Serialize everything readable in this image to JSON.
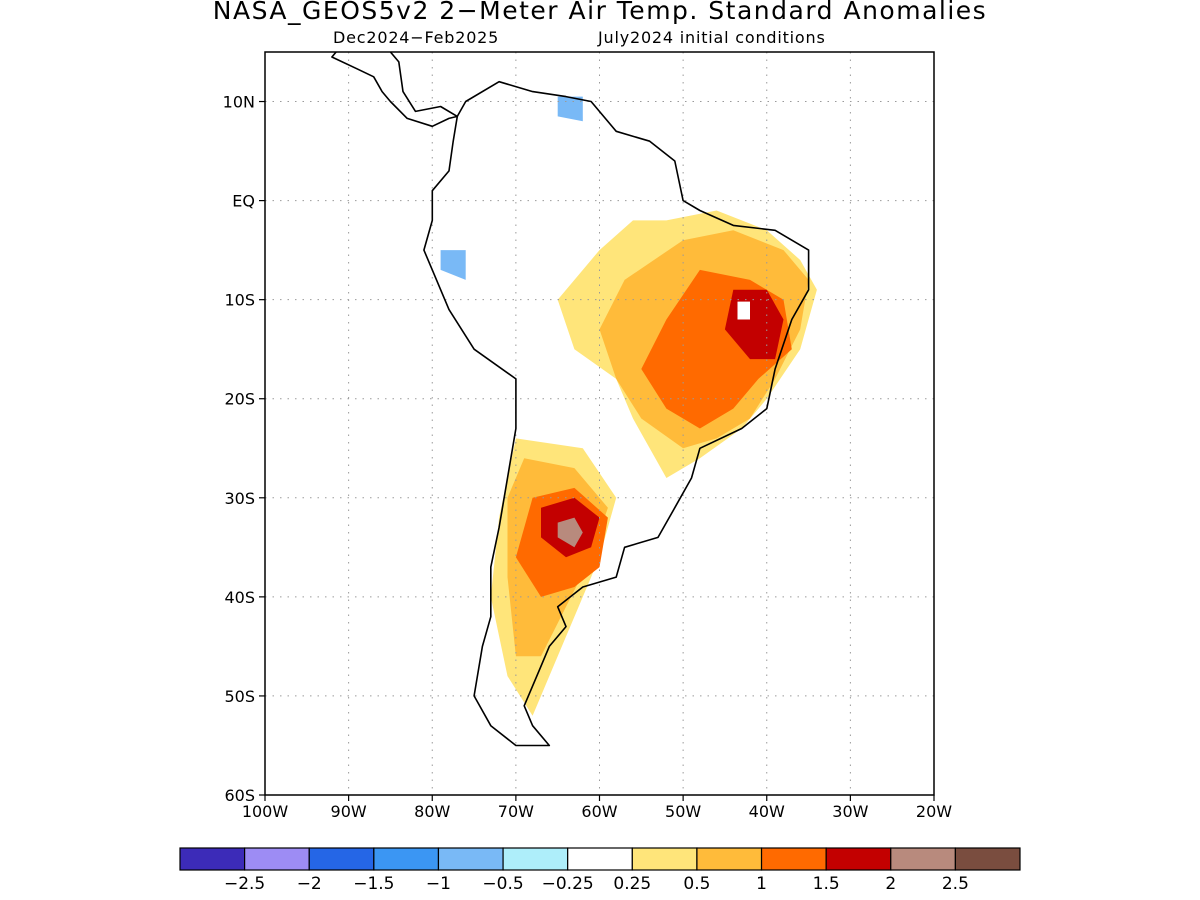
{
  "title": "NASA_GEOS5v2 2−Meter Air Temp. Standard Anomalies",
  "subtitle_left": "Dec2024−Feb2025",
  "subtitle_right": "July2024 initial conditions",
  "map": {
    "lon_range": [
      -100,
      -20
    ],
    "lat_range": [
      -60,
      15
    ],
    "lon_ticks": [
      {
        "value": -100,
        "label": "100W"
      },
      {
        "value": -90,
        "label": "90W"
      },
      {
        "value": -80,
        "label": "80W"
      },
      {
        "value": -70,
        "label": "70W"
      },
      {
        "value": -60,
        "label": "60W"
      },
      {
        "value": -50,
        "label": "50W"
      },
      {
        "value": -40,
        "label": "40W"
      },
      {
        "value": -30,
        "label": "30W"
      },
      {
        "value": -20,
        "label": "20W"
      }
    ],
    "lat_ticks": [
      {
        "value": 10,
        "label": "10N"
      },
      {
        "value": 0,
        "label": "EQ"
      },
      {
        "value": -10,
        "label": "10S"
      },
      {
        "value": -20,
        "label": "20S"
      },
      {
        "value": -30,
        "label": "30S"
      },
      {
        "value": -40,
        "label": "40S"
      },
      {
        "value": -50,
        "label": "50S"
      },
      {
        "value": -60,
        "label": "60S"
      }
    ],
    "grid": true,
    "coastline_color": "#000000"
  },
  "colorbar": {
    "bins": [
      {
        "color": "#3c2bb8"
      },
      {
        "color": "#9d8cf4"
      },
      {
        "color": "#2566e6"
      },
      {
        "color": "#3b96f3"
      },
      {
        "color": "#79b9f6"
      },
      {
        "color": "#aeeefa"
      },
      {
        "color": "#ffffff"
      },
      {
        "color": "#ffe57a"
      },
      {
        "color": "#ffbb3a"
      },
      {
        "color": "#ff6a00"
      },
      {
        "color": "#c30000"
      },
      {
        "color": "#b88a7d"
      },
      {
        "color": "#7a4d3f"
      }
    ],
    "labels": [
      "−2.5",
      "−2",
      "−1.5",
      "−1",
      "−0.5",
      "−0.25",
      "0.25",
      "0.5",
      "1",
      "1.5",
      "2",
      "2.5"
    ]
  },
  "anomaly_regions": [
    {
      "level": "0.5",
      "color": "#ffe57a",
      "lonlat": [
        [
          -52,
          -2
        ],
        [
          -46,
          -1
        ],
        [
          -40,
          -3
        ],
        [
          -36,
          -6
        ],
        [
          -34,
          -9
        ],
        [
          -36,
          -15
        ],
        [
          -40,
          -20
        ],
        [
          -43,
          -23
        ],
        [
          -48,
          -26
        ],
        [
          -52,
          -28
        ],
        [
          -56,
          -22
        ],
        [
          -58,
          -18
        ],
        [
          -63,
          -15
        ],
        [
          -65,
          -10
        ],
        [
          -60,
          -5
        ],
        [
          -56,
          -2
        ]
      ]
    },
    {
      "level": "0.5",
      "color": "#ffe57a",
      "lonlat": [
        [
          -70,
          -24
        ],
        [
          -62,
          -25
        ],
        [
          -58,
          -30
        ],
        [
          -60,
          -36
        ],
        [
          -63,
          -42
        ],
        [
          -66,
          -48
        ],
        [
          -68,
          -52
        ],
        [
          -71,
          -48
        ],
        [
          -73,
          -40
        ],
        [
          -72,
          -32
        ]
      ]
    },
    {
      "level": "1",
      "color": "#ffbb3a",
      "lonlat": [
        [
          -50,
          -4
        ],
        [
          -44,
          -3
        ],
        [
          -38,
          -5
        ],
        [
          -35,
          -8
        ],
        [
          -36,
          -13
        ],
        [
          -39,
          -18
        ],
        [
          -42,
          -22
        ],
        [
          -46,
          -24
        ],
        [
          -50,
          -25
        ],
        [
          -55,
          -22
        ],
        [
          -58,
          -18
        ],
        [
          -60,
          -13
        ],
        [
          -57,
          -8
        ]
      ]
    },
    {
      "level": "1",
      "color": "#ffbb3a",
      "lonlat": [
        [
          -69,
          -26
        ],
        [
          -63,
          -27
        ],
        [
          -59,
          -31
        ],
        [
          -61,
          -36
        ],
        [
          -64,
          -41
        ],
        [
          -67,
          -46
        ],
        [
          -70,
          -46
        ],
        [
          -71,
          -38
        ],
        [
          -71,
          -30
        ]
      ]
    },
    {
      "level": "1.5",
      "color": "#ff6a00",
      "lonlat": [
        [
          -48,
          -7
        ],
        [
          -42,
          -8
        ],
        [
          -38,
          -10
        ],
        [
          -37,
          -15
        ],
        [
          -41,
          -18
        ],
        [
          -44,
          -21
        ],
        [
          -48,
          -23
        ],
        [
          -52,
          -21
        ],
        [
          -55,
          -17
        ],
        [
          -52,
          -12
        ]
      ]
    },
    {
      "level": "1.5",
      "color": "#ff6a00",
      "lonlat": [
        [
          -68,
          -30
        ],
        [
          -63,
          -29
        ],
        [
          -59,
          -32
        ],
        [
          -60,
          -37
        ],
        [
          -63,
          -39
        ],
        [
          -67,
          -40
        ],
        [
          -70,
          -36
        ]
      ]
    },
    {
      "level": "2",
      "color": "#c30000",
      "lonlat": [
        [
          -44,
          -9
        ],
        [
          -40,
          -9
        ],
        [
          -38,
          -12
        ],
        [
          -39,
          -16
        ],
        [
          -42,
          -16
        ],
        [
          -45,
          -13
        ]
      ]
    },
    {
      "level": "2",
      "color": "#c30000",
      "lonlat": [
        [
          -67,
          -31
        ],
        [
          -63,
          -30
        ],
        [
          -60,
          -32
        ],
        [
          -61,
          -35
        ],
        [
          -64,
          -36
        ],
        [
          -67,
          -34
        ]
      ]
    },
    {
      "level": "2.5",
      "color": "#b88a7d",
      "lonlat": [
        [
          -65,
          -32.5
        ],
        [
          -63,
          -32
        ],
        [
          -62,
          -33.5
        ],
        [
          -63,
          -35
        ],
        [
          -65,
          -34
        ]
      ]
    },
    {
      "level": "0.25",
      "color": "#ffffff",
      "lonlat": [
        [
          -43.5,
          -10.2
        ],
        [
          -42,
          -10.2
        ],
        [
          -42,
          -12
        ],
        [
          -43.5,
          -12
        ]
      ]
    },
    {
      "level": "-0.5",
      "color": "#79b9f6",
      "lonlat": [
        [
          -79,
          -5
        ],
        [
          -76,
          -5
        ],
        [
          -76,
          -8
        ],
        [
          -79,
          -7
        ]
      ]
    },
    {
      "level": "-0.5",
      "color": "#79b9f6",
      "lonlat": [
        [
          -65,
          10.5
        ],
        [
          -62,
          10.5
        ],
        [
          -62,
          8
        ],
        [
          -65,
          8.5
        ]
      ]
    }
  ],
  "coastlines": [
    {
      "name": "south-america",
      "lonlat": [
        [
          -77,
          8.5
        ],
        [
          -76,
          10
        ],
        [
          -72,
          12
        ],
        [
          -68,
          11
        ],
        [
          -64,
          10.5
        ],
        [
          -61,
          10
        ],
        [
          -58,
          7
        ],
        [
          -54,
          6
        ],
        [
          -51,
          4
        ],
        [
          -50,
          0
        ],
        [
          -48,
          -1
        ],
        [
          -44,
          -2.5
        ],
        [
          -39,
          -3
        ],
        [
          -35,
          -5
        ],
        [
          -35,
          -9
        ],
        [
          -37,
          -12
        ],
        [
          -39,
          -17
        ],
        [
          -40,
          -21
        ],
        [
          -43,
          -23
        ],
        [
          -48,
          -25
        ],
        [
          -49,
          -28
        ],
        [
          -51,
          -31
        ],
        [
          -53,
          -34
        ],
        [
          -57,
          -35
        ],
        [
          -58,
          -38
        ],
        [
          -62,
          -39
        ],
        [
          -65,
          -41
        ],
        [
          -64,
          -43
        ],
        [
          -66,
          -45
        ],
        [
          -67,
          -47
        ],
        [
          -69,
          -51
        ],
        [
          -68,
          -53
        ],
        [
          -66,
          -55
        ],
        [
          -70,
          -55
        ],
        [
          -73,
          -53
        ],
        [
          -75,
          -50
        ],
        [
          -74,
          -45
        ],
        [
          -73,
          -42
        ],
        [
          -73,
          -37
        ],
        [
          -72,
          -33
        ],
        [
          -71,
          -28
        ],
        [
          -70,
          -23
        ],
        [
          -70,
          -18
        ],
        [
          -75,
          -15
        ],
        [
          -78,
          -11
        ],
        [
          -80,
          -7
        ],
        [
          -81,
          -5
        ],
        [
          -80,
          -2
        ],
        [
          -80,
          1
        ],
        [
          -78,
          3
        ],
        [
          -77.5,
          6
        ]
      ]
    },
    {
      "name": "central-america",
      "lonlat": [
        [
          -92,
          14.5
        ],
        [
          -89,
          13.3
        ],
        [
          -87,
          12.5
        ],
        [
          -86,
          11
        ],
        [
          -85,
          10
        ],
        [
          -83,
          8.3
        ],
        [
          -80,
          7.5
        ],
        [
          -78,
          8.3
        ],
        [
          -77,
          8.5
        ],
        [
          -79,
          9.5
        ],
        [
          -82,
          9
        ],
        [
          -83.5,
          11
        ],
        [
          -84,
          14
        ],
        [
          -86,
          16
        ],
        [
          -88,
          16
        ],
        [
          -89,
          17.5
        ]
      ]
    }
  ]
}
